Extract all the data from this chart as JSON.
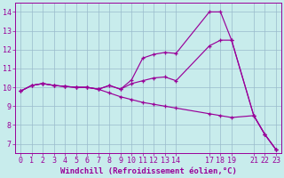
{
  "xlabel": "Windchill (Refroidissement éolien,°C)",
  "bg_color": "#c8ecec",
  "line_color": "#990099",
  "grid_color": "#99bbcc",
  "xticks": [
    0,
    1,
    2,
    3,
    4,
    5,
    6,
    7,
    8,
    9,
    10,
    11,
    12,
    13,
    14,
    17,
    18,
    19,
    21,
    22,
    23
  ],
  "yticks": [
    7,
    8,
    9,
    10,
    11,
    12,
    13,
    14
  ],
  "ylim": [
    6.5,
    14.5
  ],
  "xlim": [
    -0.5,
    23.5
  ],
  "line1_x": [
    0,
    1,
    2,
    3,
    4,
    5,
    6,
    7,
    8,
    9,
    10,
    11,
    12,
    13,
    14,
    17,
    18,
    19,
    21,
    22,
    23
  ],
  "line1_y": [
    9.8,
    10.1,
    10.2,
    10.1,
    10.05,
    10.0,
    10.0,
    9.9,
    10.1,
    9.9,
    10.4,
    11.55,
    11.75,
    11.85,
    11.8,
    14.0,
    14.0,
    12.5,
    8.5,
    7.5,
    6.7
  ],
  "line2_x": [
    0,
    1,
    2,
    3,
    4,
    5,
    6,
    7,
    8,
    9,
    10,
    11,
    12,
    13,
    14,
    17,
    18,
    19,
    21,
    22,
    23
  ],
  "line2_y": [
    9.8,
    10.1,
    10.2,
    10.1,
    10.05,
    10.0,
    10.0,
    9.9,
    10.1,
    9.9,
    10.2,
    10.35,
    10.5,
    10.55,
    10.35,
    12.2,
    12.5,
    12.5,
    8.5,
    7.5,
    6.7
  ],
  "line3_x": [
    0,
    1,
    2,
    3,
    4,
    5,
    6,
    7,
    8,
    9,
    10,
    11,
    12,
    13,
    14,
    17,
    18,
    19,
    21,
    22,
    23
  ],
  "line3_y": [
    9.8,
    10.1,
    10.2,
    10.1,
    10.05,
    10.0,
    10.0,
    9.9,
    9.7,
    9.5,
    9.35,
    9.2,
    9.1,
    9.0,
    8.9,
    8.6,
    8.5,
    8.4,
    8.5,
    7.5,
    6.7
  ],
  "tick_fontsize": 6,
  "xlabel_fontsize": 6.5
}
